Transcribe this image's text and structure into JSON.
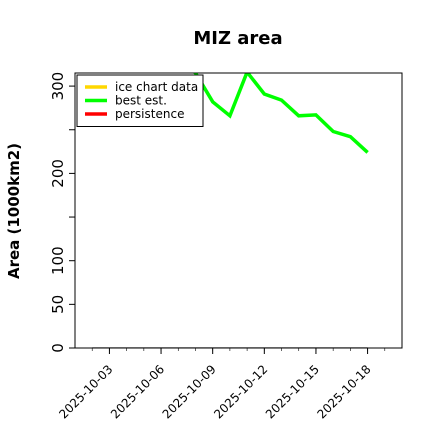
{
  "chart_data": {
    "type": "line",
    "title": "MIZ area",
    "xlabel": "",
    "ylabel": "Area (1000km2)",
    "xlim": [
      "2025-10-01",
      "2025-10-20"
    ],
    "ylim": [
      0,
      315
    ],
    "yticks": [
      0,
      50,
      100,
      200,
      300
    ],
    "xticks": [
      "2025-10-03",
      "2025-10-06",
      "2025-10-09",
      "2025-10-12",
      "2025-10-15",
      "2025-10-18"
    ],
    "legend_position": "top-left",
    "grid": false,
    "series": [
      {
        "name": "ice chart data",
        "color": "#ffd700",
        "x": [],
        "y": []
      },
      {
        "name": "best est.",
        "color": "#00ff00",
        "x": [
          "2025-10-07",
          "2025-10-08",
          "2025-10-09",
          "2025-10-10",
          "2025-10-11",
          "2025-10-12",
          "2025-10-13",
          "2025-10-14",
          "2025-10-15",
          "2025-10-16",
          "2025-10-17",
          "2025-10-18"
        ],
        "y": [
          330,
          315,
          282,
          266,
          316,
          291,
          284,
          266,
          267,
          248,
          242,
          224
        ]
      },
      {
        "name": "persistence",
        "color": "#ff0000",
        "x": [],
        "y": []
      },
      {
        "name": "",
        "color": "#808080",
        "x": [
          "2025-10-02",
          "2025-10-18"
        ],
        "y": [
          0,
          0
        ]
      }
    ]
  }
}
